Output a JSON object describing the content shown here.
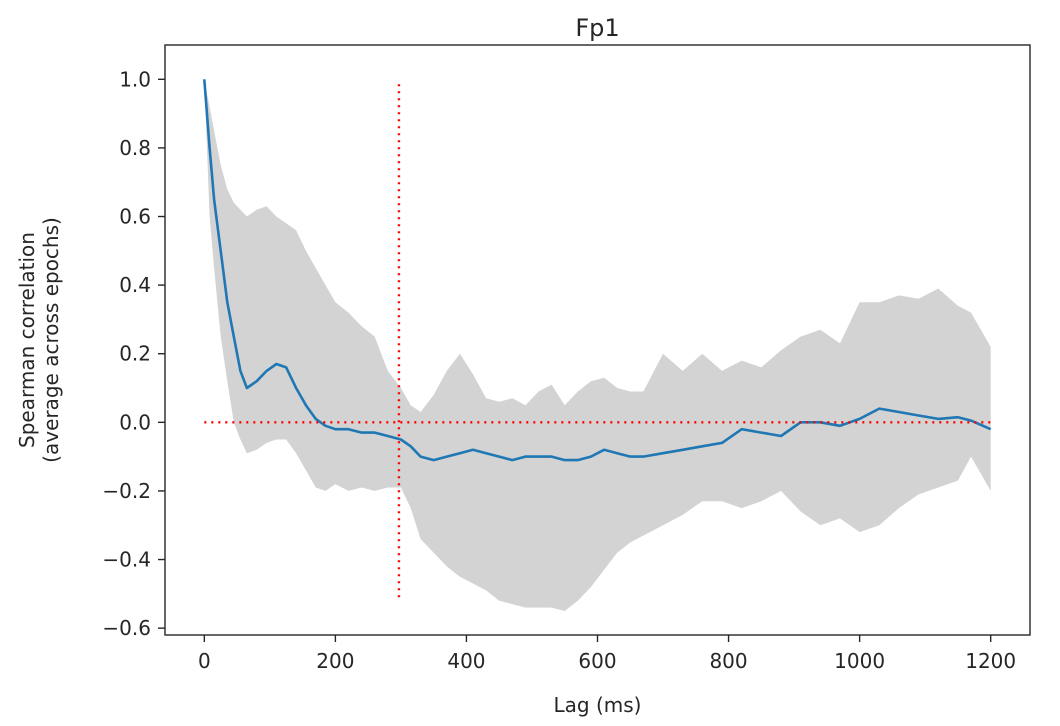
{
  "chart_data": {
    "type": "line",
    "title": "Fp1",
    "xlabel": "Lag (ms)",
    "ylabel": [
      "Spearman correlation",
      "(average across epochs)"
    ],
    "xlim": [
      -60,
      1260
    ],
    "ylim": [
      -0.62,
      1.1
    ],
    "xticks": [
      0,
      200,
      400,
      600,
      800,
      1000,
      1200
    ],
    "xtick_labels": [
      "0",
      "200",
      "400",
      "600",
      "800",
      "1000",
      "1200"
    ],
    "yticks": [
      -0.6,
      -0.4,
      -0.2,
      0.0,
      0.2,
      0.4,
      0.6,
      0.8,
      1.0
    ],
    "ytick_labels": [
      "−0.6",
      "−0.4",
      "−0.2",
      "0.0",
      "0.2",
      "0.4",
      "0.6",
      "0.8",
      "1.0"
    ],
    "grid": false,
    "colors": {
      "line": "#1f77b4",
      "band": "#d3d3d3",
      "reference": "#ff0000",
      "axes": "#262626"
    },
    "series": [
      {
        "x": [
          0,
          8,
          15,
          25,
          35,
          45,
          55,
          65,
          80,
          95,
          110,
          125,
          140,
          155,
          170,
          185,
          200,
          220,
          240,
          260,
          280,
          300,
          315,
          330,
          350,
          370,
          390,
          410,
          430,
          450,
          470,
          490,
          510,
          530,
          550,
          570,
          590,
          610,
          630,
          650,
          670,
          700,
          730,
          760,
          790,
          820,
          850,
          880,
          910,
          940,
          970,
          1000,
          1030,
          1060,
          1090,
          1120,
          1150,
          1170,
          1200
        ],
        "y": [
          1.0,
          0.8,
          0.65,
          0.5,
          0.35,
          0.25,
          0.15,
          0.1,
          0.12,
          0.15,
          0.17,
          0.16,
          0.1,
          0.05,
          0.01,
          -0.01,
          -0.02,
          -0.02,
          -0.03,
          -0.03,
          -0.04,
          -0.05,
          -0.07,
          -0.1,
          -0.11,
          -0.1,
          -0.09,
          -0.08,
          -0.09,
          -0.1,
          -0.11,
          -0.1,
          -0.1,
          -0.1,
          -0.11,
          -0.11,
          -0.1,
          -0.08,
          -0.09,
          -0.1,
          -0.1,
          -0.09,
          -0.08,
          -0.07,
          -0.06,
          -0.02,
          -0.03,
          -0.04,
          0.0,
          0.0,
          -0.01,
          0.01,
          0.04,
          0.03,
          0.02,
          0.01,
          0.015,
          0.005,
          -0.02
        ],
        "lower": [
          1.0,
          0.6,
          0.45,
          0.25,
          0.12,
          0.0,
          -0.05,
          -0.09,
          -0.08,
          -0.06,
          -0.05,
          -0.05,
          -0.09,
          -0.14,
          -0.19,
          -0.2,
          -0.18,
          -0.2,
          -0.19,
          -0.2,
          -0.19,
          -0.19,
          -0.25,
          -0.34,
          -0.38,
          -0.42,
          -0.45,
          -0.47,
          -0.49,
          -0.52,
          -0.53,
          -0.54,
          -0.54,
          -0.54,
          -0.55,
          -0.52,
          -0.48,
          -0.43,
          -0.38,
          -0.35,
          -0.33,
          -0.3,
          -0.27,
          -0.23,
          -0.23,
          -0.25,
          -0.23,
          -0.2,
          -0.26,
          -0.3,
          -0.28,
          -0.32,
          -0.3,
          -0.25,
          -0.21,
          -0.19,
          -0.17,
          -0.1,
          -0.2
        ],
        "upper": [
          1.0,
          0.92,
          0.85,
          0.75,
          0.68,
          0.64,
          0.62,
          0.6,
          0.62,
          0.63,
          0.6,
          0.58,
          0.56,
          0.5,
          0.45,
          0.4,
          0.35,
          0.32,
          0.28,
          0.25,
          0.15,
          0.1,
          0.05,
          0.03,
          0.08,
          0.15,
          0.2,
          0.14,
          0.07,
          0.06,
          0.07,
          0.05,
          0.09,
          0.11,
          0.05,
          0.09,
          0.12,
          0.13,
          0.1,
          0.09,
          0.09,
          0.2,
          0.15,
          0.2,
          0.15,
          0.18,
          0.16,
          0.21,
          0.25,
          0.27,
          0.23,
          0.35,
          0.35,
          0.37,
          0.36,
          0.39,
          0.34,
          0.32,
          0.22
        ]
      }
    ],
    "reference_lines": [
      {
        "orientation": "horizontal",
        "y": 0.0,
        "x_range": [
          0,
          1200
        ],
        "style": "dotted"
      },
      {
        "orientation": "vertical",
        "x": 297,
        "y_range": [
          -0.51,
          1.0
        ],
        "style": "dotted"
      }
    ]
  }
}
